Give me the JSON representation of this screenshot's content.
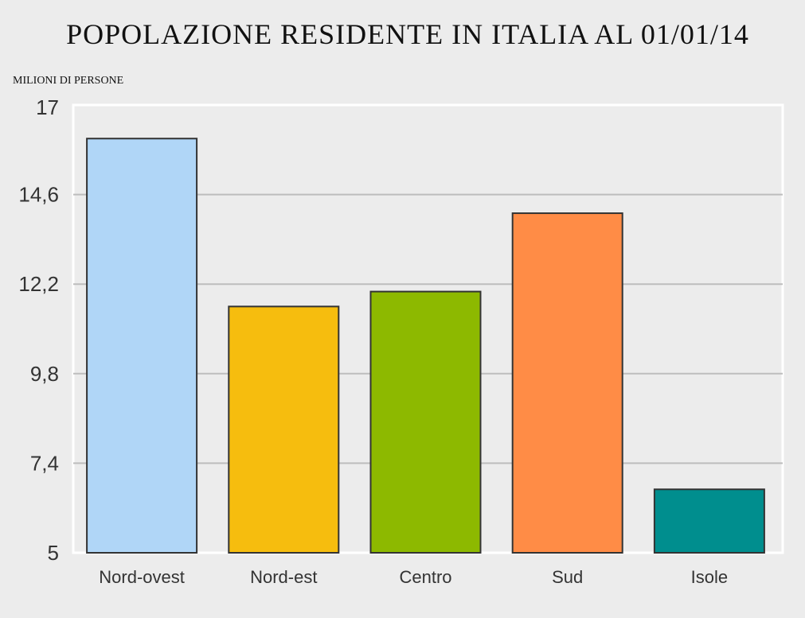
{
  "chart_data": {
    "type": "bar",
    "title": "POPOLAZIONE RESIDENTE IN ITALIA AL 01/01/14",
    "ylabel": "MILIONI DI PERSONE",
    "xlabel": "",
    "categories": [
      "Nord-ovest",
      "Nord-est",
      "Centro",
      "Sud",
      "Isole"
    ],
    "values": [
      16.1,
      11.6,
      12.0,
      14.1,
      6.7
    ],
    "colors": [
      "#b0d6f7",
      "#f6bd0e",
      "#8db900",
      "#ff8c46",
      "#008e8e"
    ],
    "ylim": [
      5,
      17
    ],
    "yticks": [
      "5",
      "7,4",
      "9,8",
      "12,2",
      "14,6",
      "17"
    ],
    "ytick_values": [
      5,
      7.4,
      9.8,
      12.2,
      14.6,
      17
    ],
    "grid": true,
    "legend": "none"
  }
}
